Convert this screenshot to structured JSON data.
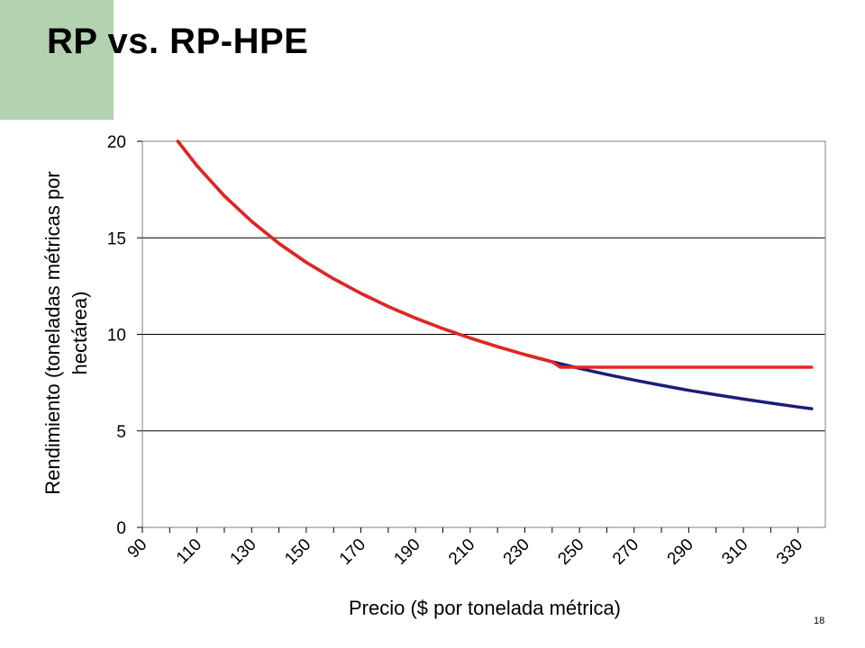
{
  "slide": {
    "title": "RP vs. RP-HPE",
    "page_number": "18",
    "accent_block_color": "#b3d3b0"
  },
  "chart_data": {
    "type": "line",
    "title": "",
    "xlabel": "Precio ($ por tonelada métrica)",
    "ylabel_line1": "Rendimiento (toneladas métricas por",
    "ylabel_line2": "hectárea)",
    "xlim": [
      90,
      340
    ],
    "ylim": [
      0,
      20
    ],
    "x_ticks": [
      90,
      110,
      130,
      150,
      170,
      190,
      210,
      230,
      250,
      270,
      290,
      310,
      330
    ],
    "y_ticks": [
      0,
      5,
      10,
      15,
      20
    ],
    "grid": "horizontal",
    "legend": "none",
    "series": [
      {
        "color": "#1c1c7a",
        "x": [
          103,
          110,
          120,
          130,
          140,
          150,
          160,
          170,
          180,
          190,
          200,
          210,
          220,
          230,
          240,
          250,
          260,
          270,
          280,
          290,
          300,
          310,
          320,
          330,
          335
        ],
        "y": [
          20.0,
          18.73,
          17.17,
          15.85,
          14.71,
          13.73,
          12.88,
          12.12,
          11.44,
          10.84,
          10.3,
          9.81,
          9.36,
          8.95,
          8.58,
          8.24,
          7.92,
          7.63,
          7.36,
          7.1,
          6.87,
          6.65,
          6.44,
          6.24,
          6.15
        ]
      },
      {
        "color": "#e3261f",
        "x": [
          103,
          110,
          120,
          130,
          140,
          150,
          160,
          170,
          180,
          190,
          200,
          210,
          220,
          230,
          240,
          243,
          250,
          260,
          270,
          280,
          290,
          300,
          310,
          320,
          330,
          335
        ],
        "y": [
          20.0,
          18.73,
          17.17,
          15.85,
          14.71,
          13.73,
          12.88,
          12.12,
          11.44,
          10.84,
          10.3,
          9.81,
          9.36,
          8.95,
          8.58,
          8.3,
          8.3,
          8.3,
          8.3,
          8.3,
          8.3,
          8.3,
          8.3,
          8.3,
          8.3,
          8.3
        ]
      }
    ]
  }
}
